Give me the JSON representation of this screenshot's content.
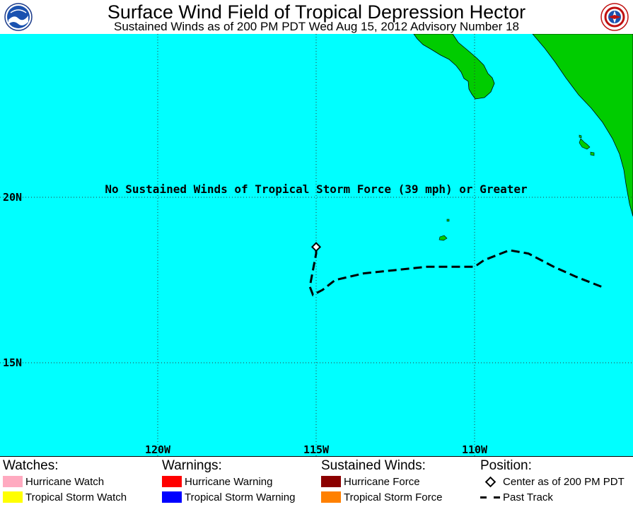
{
  "header": {
    "title": "Surface Wind Field of Tropical Depression Hector",
    "subtitle": "Sustained Winds as of 200 PM PDT Wed Aug 15, 2012    Advisory Number 18",
    "left_logo_icon": "noaa-logo",
    "right_logo_icon": "nws-logo"
  },
  "map": {
    "ocean_color": "#00FFFF",
    "land_color": "#00CC00",
    "notice": "No Sustained Winds of Tropical Storm Force (39 mph) or Greater",
    "lat_labels": [
      {
        "label": "20N",
        "lat": 20
      },
      {
        "label": "15N",
        "lat": 15
      }
    ],
    "lon_labels": [
      {
        "label": "120W",
        "lon": -120
      },
      {
        "label": "115W",
        "lon": -115
      },
      {
        "label": "110W",
        "lon": -110
      }
    ],
    "center": {
      "lat": 18.5,
      "lon": -115.0
    },
    "past_track": [
      [
        17.3,
        -106.0
      ],
      [
        17.6,
        -106.8
      ],
      [
        17.9,
        -107.5
      ],
      [
        18.3,
        -108.3
      ],
      [
        18.4,
        -108.9
      ],
      [
        18.1,
        -109.7
      ],
      [
        17.9,
        -110.0
      ],
      [
        17.9,
        -111.5
      ],
      [
        17.8,
        -112.5
      ],
      [
        17.7,
        -113.5
      ],
      [
        17.5,
        -114.4
      ],
      [
        17.2,
        -114.8
      ],
      [
        17.05,
        -115.1
      ],
      [
        17.3,
        -115.2
      ],
      [
        17.8,
        -115.1
      ],
      [
        18.3,
        -115.0
      ],
      [
        18.5,
        -115.0
      ]
    ]
  },
  "legend": {
    "watches": {
      "heading": "Watches:",
      "items": [
        {
          "label": "Hurricane Watch",
          "color": "#FFAAC0"
        },
        {
          "label": "Tropical Storm Watch",
          "color": "#FFFF00"
        }
      ]
    },
    "warnings": {
      "heading": "Warnings:",
      "items": [
        {
          "label": "Hurricane Warning",
          "color": "#FF0000"
        },
        {
          "label": "Tropical Storm Warning",
          "color": "#0000FF"
        }
      ]
    },
    "winds": {
      "heading": "Sustained Winds:",
      "items": [
        {
          "label": "Hurricane Force",
          "color": "#8B0000"
        },
        {
          "label": "Tropical Storm Force",
          "color": "#FF8000"
        }
      ]
    },
    "position": {
      "heading": "Position:",
      "center_label": "Center as of 200 PM PDT",
      "track_label": "Past Track"
    }
  }
}
